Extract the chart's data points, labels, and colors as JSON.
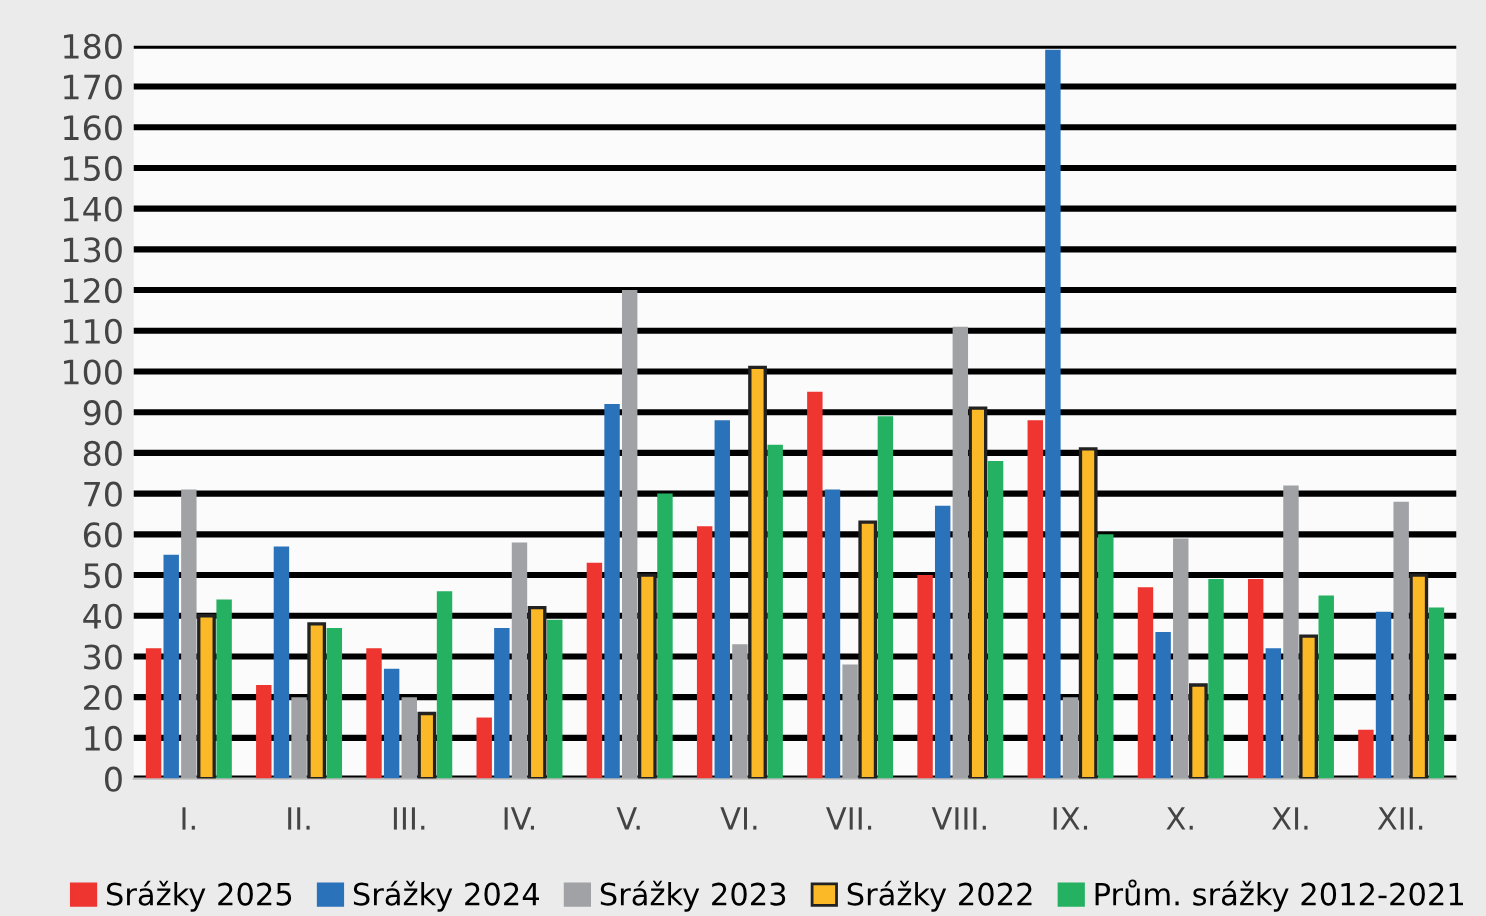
{
  "chart_data": {
    "type": "bar",
    "categories": [
      "I.",
      "II.",
      "III.",
      "IV.",
      "V.",
      "VI.",
      "VII.",
      "VIII.",
      "IX.",
      "X.",
      "XI.",
      "XII."
    ],
    "series": [
      {
        "name": "Srážky 2025",
        "color": "#ee3530",
        "values": [
          32,
          23,
          32,
          15,
          53,
          62,
          95,
          50,
          88,
          47,
          49,
          12
        ]
      },
      {
        "name": "Srážky 2024",
        "color": "#2a72ba",
        "values": [
          55,
          57,
          27,
          37,
          92,
          88,
          71,
          67,
          179,
          36,
          32,
          41
        ]
      },
      {
        "name": "Srážky 2023",
        "color": "#a0a2a5",
        "values": [
          71,
          20,
          20,
          58,
          120,
          33,
          28,
          111,
          20,
          59,
          72,
          68
        ]
      },
      {
        "name": "Srážky 2022",
        "color": "#fbb927",
        "values": [
          40,
          38,
          16,
          42,
          50,
          101,
          63,
          91,
          81,
          23,
          35,
          50
        ]
      },
      {
        "name": "Prům. srážky 2012-2021",
        "color": "#24b262",
        "values": [
          44,
          37,
          46,
          39,
          70,
          82,
          89,
          78,
          60,
          49,
          45,
          42
        ]
      }
    ],
    "ylim": [
      0,
      180
    ],
    "yticks": [
      0,
      10,
      20,
      30,
      40,
      50,
      60,
      70,
      80,
      90,
      100,
      110,
      120,
      130,
      140,
      150,
      160,
      170,
      180
    ],
    "grid": "y",
    "legend": "bottom"
  }
}
